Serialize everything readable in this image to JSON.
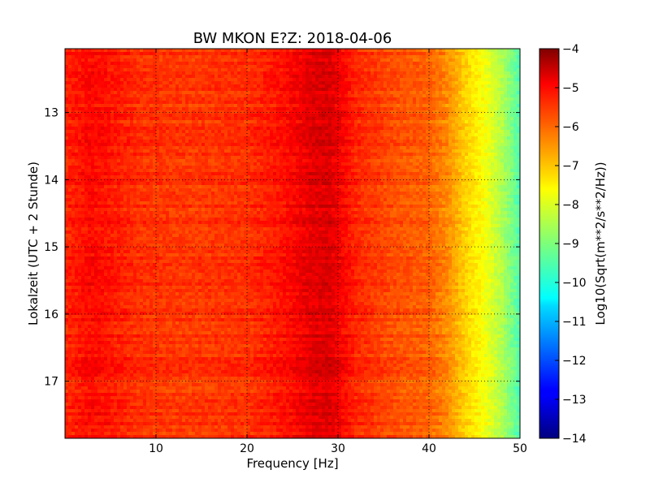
{
  "chart_data": {
    "type": "heatmap",
    "title": "BW MKON E?Z: 2018-04-06",
    "xlabel": "Frequency [Hz]",
    "ylabel": "Lokalzeit (UTC + 2 Stunde)",
    "xlim": [
      0,
      50
    ],
    "ylim": [
      12.05,
      17.85
    ],
    "y_inverted": true,
    "grid": true,
    "x_ticks": [
      10,
      20,
      30,
      40,
      50
    ],
    "y_ticks": [
      13,
      14,
      15,
      16,
      17
    ],
    "colormap": "jet",
    "colorbar": {
      "label": "Log10(Sqrt(m**2/s**2/Hz))",
      "range": [
        -14,
        -4
      ],
      "ticks": [
        -4,
        -5,
        -6,
        -7,
        -8,
        -9,
        -10,
        -11,
        -12,
        -13,
        -14
      ]
    },
    "profile": {
      "description_units": "frequency Hz vs typical log10 amplitude",
      "frequency": [
        0,
        3,
        8,
        13,
        20,
        24,
        27,
        29,
        32,
        36,
        40,
        42,
        44,
        46,
        48,
        50
      ],
      "value": [
        -5.6,
        -5.3,
        -5.7,
        -5.8,
        -5.7,
        -5.4,
        -5.0,
        -4.9,
        -5.6,
        -6.0,
        -6.2,
        -6.6,
        -7.3,
        -7.8,
        -8.5,
        -9.5
      ]
    },
    "colors": {
      "axis": "#000000",
      "background": "#ffffff"
    }
  }
}
